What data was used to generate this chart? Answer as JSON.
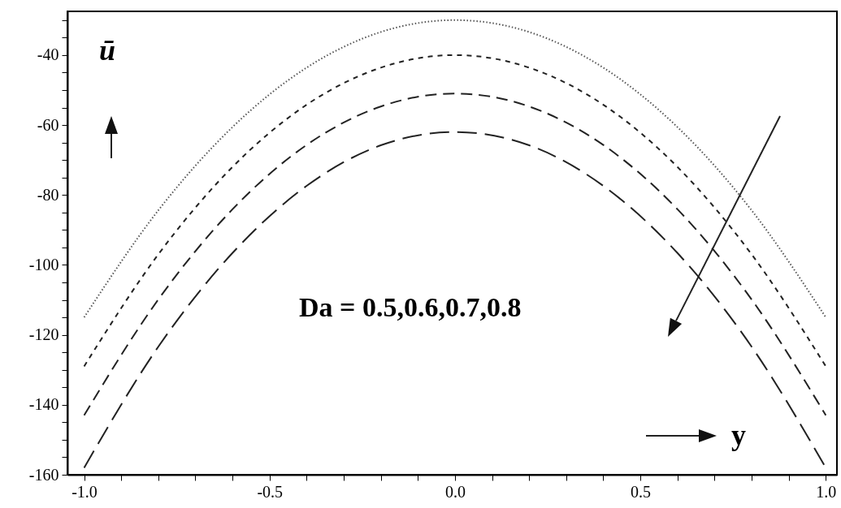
{
  "chart_data": {
    "type": "line",
    "xlabel": "y",
    "ylabel": "ū",
    "annotations": [
      "Da = 0.5,0.6,0.7,0.8"
    ],
    "x": [
      -1.0,
      -0.8,
      -0.6,
      -0.4,
      -0.2,
      0.0,
      0.2,
      0.4,
      0.6,
      0.8,
      1.0
    ],
    "series": [
      {
        "color": "#555555",
        "line_style": "dotted",
        "values": [
          -115,
          -84.4,
          -60.6,
          -43.6,
          -33.4,
          -30,
          -33.4,
          -43.6,
          -60.6,
          -84.4,
          -115
        ]
      },
      {
        "color": "#222222",
        "line_style": "dashed",
        "values": [
          -129,
          -97.0,
          -72.0,
          -54.2,
          -43.6,
          -40,
          -43.6,
          -54.2,
          -72.0,
          -97.0,
          -129
        ]
      },
      {
        "color": "#222222",
        "line_style": "dashed",
        "values": [
          -143,
          -109.9,
          -84.1,
          -65.7,
          -54.7,
          -51,
          -54.7,
          -65.7,
          -84.1,
          -109.9,
          -143
        ]
      },
      {
        "color": "#222222",
        "line_style": "dashed",
        "values": [
          -158,
          -123.4,
          -96.6,
          -77.4,
          -65.8,
          -62,
          -65.8,
          -77.4,
          -96.6,
          -123.4,
          -158
        ]
      }
    ],
    "xlim": [
      -1.045,
      1.03
    ],
    "ylim": [
      -160,
      -27.5
    ],
    "xticks": [
      {
        "value": -1,
        "label": "-1.0"
      },
      {
        "value": -0.9,
        "label": null
      },
      {
        "value": -0.8,
        "label": null
      },
      {
        "value": -0.7,
        "label": null
      },
      {
        "value": -0.6,
        "label": null
      },
      {
        "value": -0.5,
        "label": "-0.5"
      },
      {
        "value": -0.4,
        "label": null
      },
      {
        "value": -0.3,
        "label": null
      },
      {
        "value": -0.2,
        "label": null
      },
      {
        "value": -0.1,
        "label": null
      },
      {
        "value": 0,
        "label": "0.0"
      },
      {
        "value": 0.1,
        "label": null
      },
      {
        "value": 0.2,
        "label": null
      },
      {
        "value": 0.3,
        "label": null
      },
      {
        "value": 0.4,
        "label": null
      },
      {
        "value": 0.5,
        "label": "0.5"
      },
      {
        "value": 0.6,
        "label": null
      },
      {
        "value": 0.7,
        "label": null
      },
      {
        "value": 0.8,
        "label": null
      },
      {
        "value": 0.9,
        "label": null
      },
      {
        "value": 1,
        "label": "1.0"
      }
    ],
    "yticks": [
      -160,
      {
        "value": -155,
        "label": null
      },
      {
        "value": -150,
        "label": null
      },
      {
        "value": -145,
        "label": null
      },
      -140,
      {
        "value": -135,
        "label": null
      },
      {
        "value": -130,
        "label": null
      },
      {
        "value": -125,
        "label": null
      },
      -120,
      {
        "value": -115,
        "label": null
      },
      {
        "value": -110,
        "label": null
      },
      {
        "value": -105,
        "label": null
      },
      -100,
      {
        "value": -95,
        "label": null
      },
      {
        "value": -90,
        "label": null
      },
      {
        "value": -85,
        "label": null
      },
      -80,
      {
        "value": -75,
        "label": null
      },
      {
        "value": -70,
        "label": null
      },
      {
        "value": -65,
        "label": null
      },
      -60,
      {
        "value": -55,
        "label": null
      },
      {
        "value": -50,
        "label": null
      },
      {
        "value": -45,
        "label": null
      },
      -40,
      {
        "value": -35,
        "label": null
      },
      {
        "value": -30,
        "label": null
      }
    ],
    "grid": false,
    "marker": "none"
  }
}
